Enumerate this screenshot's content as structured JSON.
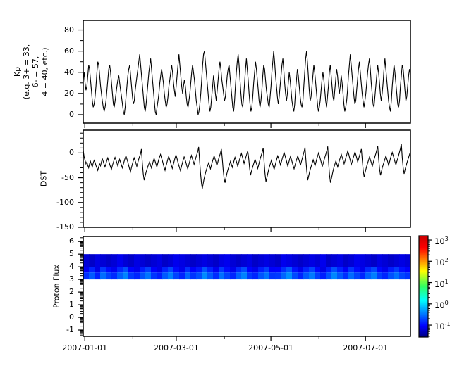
{
  "figure": {
    "bg": "#ffffff",
    "axis_color": "#000000"
  },
  "xaxis": {
    "start": "2006-12-31",
    "end": "2007-07-30",
    "major_ticks": [
      {
        "date": "2007-01-01",
        "label": "2007-01-01"
      },
      {
        "date": "2007-03-01",
        "label": "2007-03-01"
      },
      {
        "date": "2007-05-01",
        "label": "2007-05-01"
      },
      {
        "date": "2007-07-01",
        "label": "2007-07-01"
      }
    ],
    "minor_ticks": [
      "2007-02-01",
      "2007-04-01",
      "2007-06-01"
    ]
  },
  "chart_data": [
    {
      "id": "kp",
      "type": "line",
      "ylabel": "Kp\n(e.g. 3+ = 33,\n6- = 57,\n4 = 40, etc.)",
      "ylim": [
        -8,
        89
      ],
      "yticks_major": [
        0,
        20,
        40,
        60,
        80
      ],
      "yticks_minor": [
        10,
        30,
        50,
        70
      ],
      "line_color": "#000000",
      "values": [
        33,
        40,
        30,
        23,
        27,
        37,
        47,
        43,
        33,
        23,
        13,
        7,
        10,
        17,
        27,
        40,
        50,
        47,
        37,
        27,
        20,
        13,
        7,
        3,
        7,
        13,
        23,
        33,
        43,
        47,
        40,
        30,
        20,
        10,
        7,
        13,
        20,
        27,
        33,
        37,
        30,
        23,
        17,
        10,
        3,
        0,
        7,
        17,
        27,
        37,
        43,
        47,
        37,
        27,
        17,
        10,
        13,
        23,
        30,
        37,
        43,
        50,
        57,
        47,
        37,
        27,
        17,
        7,
        3,
        10,
        20,
        30,
        40,
        47,
        53,
        43,
        33,
        23,
        13,
        3,
        0,
        7,
        13,
        20,
        30,
        37,
        43,
        37,
        30,
        20,
        13,
        7,
        10,
        17,
        27,
        33,
        40,
        47,
        40,
        30,
        23,
        17,
        27,
        37,
        47,
        57,
        47,
        37,
        27,
        20,
        27,
        33,
        27,
        17,
        10,
        7,
        13,
        20,
        30,
        40,
        47,
        40,
        33,
        23,
        13,
        7,
        0,
        3,
        10,
        20,
        33,
        47,
        57,
        60,
        50,
        40,
        30,
        20,
        10,
        3,
        7,
        17,
        27,
        37,
        30,
        20,
        13,
        23,
        33,
        43,
        50,
        43,
        33,
        27,
        20,
        13,
        17,
        27,
        37,
        43,
        47,
        37,
        27,
        17,
        7,
        3,
        13,
        27,
        40,
        50,
        57,
        47,
        33,
        20,
        10,
        7,
        17,
        30,
        43,
        53,
        43,
        33,
        20,
        10,
        3,
        7,
        17,
        30,
        40,
        50,
        43,
        33,
        23,
        13,
        7,
        13,
        23,
        37,
        47,
        43,
        33,
        23,
        17,
        10,
        7,
        17,
        27,
        40,
        50,
        60,
        50,
        37,
        27,
        17,
        10,
        17,
        27,
        37,
        47,
        53,
        43,
        30,
        20,
        13,
        20,
        30,
        40,
        33,
        23,
        13,
        7,
        3,
        10,
        23,
        33,
        43,
        37,
        27,
        17,
        10,
        7,
        13,
        27,
        40,
        53,
        60,
        50,
        37,
        23,
        13,
        17,
        27,
        37,
        47,
        40,
        30,
        20,
        10,
        3,
        7,
        13,
        23,
        33,
        40,
        33,
        23,
        13,
        7,
        17,
        27,
        40,
        47,
        37,
        27,
        17,
        13,
        23,
        33,
        43,
        37,
        27,
        20,
        27,
        37,
        30,
        20,
        10,
        3,
        7,
        13,
        23,
        37,
        47,
        57,
        47,
        37,
        27,
        17,
        10,
        13,
        23,
        33,
        43,
        50,
        40,
        30,
        20,
        13,
        7,
        13,
        20,
        30,
        40,
        47,
        53,
        43,
        30,
        20,
        10,
        7,
        17,
        27,
        37,
        47,
        40,
        30,
        20,
        13,
        20,
        30,
        43,
        53,
        43,
        33,
        23,
        13,
        7,
        3,
        13,
        27,
        37,
        47,
        40,
        30,
        20,
        10,
        7,
        13,
        27,
        37,
        47,
        43,
        33,
        23,
        13,
        17,
        27,
        37,
        43,
        37
      ]
    },
    {
      "id": "dst",
      "type": "line",
      "ylabel": "DST",
      "ylim": [
        -150,
        46
      ],
      "yticks_major": [
        0,
        -50,
        -100,
        -150
      ],
      "yticks_minor": [
        40,
        30,
        20,
        10,
        -10,
        -20,
        -30,
        -40,
        -60,
        -70,
        -80,
        -90,
        -110,
        -120,
        -130,
        -140
      ],
      "line_color": "#000000",
      "values": [
        5,
        -8,
        -15,
        -22,
        -18,
        -25,
        -30,
        -22,
        -17,
        -24,
        -28,
        -20,
        -15,
        -19,
        -25,
        -30,
        -35,
        -28,
        -22,
        -26,
        -18,
        -12,
        -17,
        -23,
        -28,
        -22,
        -15,
        -10,
        -16,
        -22,
        -28,
        -33,
        -26,
        -20,
        -14,
        -9,
        -14,
        -20,
        -26,
        -19,
        -13,
        -18,
        -24,
        -30,
        -24,
        -17,
        -11,
        -6,
        -12,
        -18,
        -25,
        -32,
        -38,
        -30,
        -23,
        -16,
        -10,
        -15,
        -21,
        -27,
        -20,
        -13,
        -7,
        -2,
        8,
        -20,
        -42,
        -55,
        -48,
        -40,
        -34,
        -28,
        -23,
        -18,
        -24,
        -30,
        -24,
        -17,
        -11,
        -16,
        -22,
        -28,
        -21,
        -14,
        -8,
        -3,
        -9,
        -15,
        -22,
        -29,
        -35,
        -27,
        -20,
        -13,
        -7,
        -12,
        -18,
        -25,
        -31,
        -24,
        -17,
        -10,
        -4,
        -10,
        -17,
        -24,
        -30,
        -36,
        -28,
        -21,
        -14,
        -8,
        -13,
        -19,
        -26,
        -32,
        -25,
        -18,
        -11,
        -5,
        -11,
        -17,
        -23,
        -16,
        -9,
        -3,
        3,
        12,
        -15,
        -40,
        -60,
        -72,
        -62,
        -52,
        -44,
        -37,
        -31,
        -25,
        -20,
        -26,
        -32,
        -25,
        -18,
        -12,
        -6,
        -12,
        -18,
        -25,
        -19,
        -12,
        -6,
        0,
        8,
        -12,
        -35,
        -52,
        -60,
        -50,
        -42,
        -35,
        -29,
        -23,
        -17,
        -23,
        -29,
        -22,
        -15,
        -9,
        -14,
        -20,
        -27,
        -20,
        -13,
        -7,
        -1,
        -7,
        -14,
        -21,
        -15,
        -8,
        -2,
        4,
        -10,
        -30,
        -45,
        -38,
        -31,
        -25,
        -19,
        -13,
        -18,
        -24,
        -31,
        -24,
        -17,
        -10,
        -4,
        2,
        10,
        -18,
        -42,
        -58,
        -50,
        -42,
        -34,
        -27,
        -21,
        -15,
        -21,
        -27,
        -33,
        -26,
        -19,
        -12,
        -6,
        -11,
        -17,
        -24,
        -18,
        -11,
        -5,
        1,
        -5,
        -12,
        -19,
        -26,
        -20,
        -13,
        -7,
        -13,
        -19,
        -26,
        -32,
        -25,
        -18,
        -12,
        -6,
        -12,
        -18,
        -25,
        -18,
        -11,
        -4,
        3,
        11,
        -15,
        -38,
        -55,
        -47,
        -39,
        -32,
        -26,
        -20,
        -14,
        -20,
        -26,
        -19,
        -12,
        -6,
        0,
        -6,
        -13,
        -20,
        -27,
        -21,
        -14,
        -8,
        -2,
        5,
        13,
        -20,
        -45,
        -60,
        -52,
        -43,
        -35,
        -28,
        -22,
        -16,
        -22,
        -28,
        -21,
        -14,
        -8,
        -3,
        -9,
        -15,
        -22,
        -16,
        -9,
        -3,
        4,
        -2,
        -9,
        -16,
        -23,
        -17,
        -10,
        -4,
        2,
        -4,
        -11,
        -18,
        -12,
        -5,
        1,
        8,
        -15,
        -35,
        -48,
        -40,
        -33,
        -26,
        -20,
        -14,
        -8,
        -14,
        -20,
        -27,
        -20,
        -13,
        -7,
        -1,
        6,
        14,
        -12,
        -32,
        -45,
        -38,
        -30,
        -24,
        -18,
        -12,
        -6,
        -12,
        -18,
        -25,
        -18,
        -11,
        -5,
        1,
        -5,
        -11,
        -18,
        -24,
        -17,
        -11,
        -5,
        2,
        9,
        18,
        -10,
        -30,
        -42,
        -34,
        -27,
        -21,
        -15,
        -9,
        -3,
        3
      ]
    },
    {
      "id": "proton_flux",
      "type": "heatmap",
      "ylabel": "Proton Flux",
      "ylim": [
        -1.5,
        6.4
      ],
      "yticks_major": [
        -1,
        0,
        1,
        2,
        3,
        4,
        5,
        6
      ],
      "minor_style": "log",
      "band": {
        "y_bottom": 3,
        "y_top": 5
      },
      "rows": [
        {
          "y_bottom": 4,
          "y_top": 5,
          "bright_bottom": false,
          "values": [
            0.07,
            0.06,
            0.08,
            0.07,
            0.06,
            0.07,
            0.09,
            0.07,
            0.06,
            0.08,
            0.07,
            0.06,
            0.07,
            0.08,
            0.06,
            0.07,
            0.09,
            0.08,
            0.07,
            0.06,
            0.07,
            0.08,
            0.07,
            0.06,
            0.08,
            0.09,
            0.07,
            0.06,
            0.07,
            0.08,
            0.06,
            0.07,
            0.08,
            0.07,
            0.06,
            0.09,
            0.08,
            0.07,
            0.06,
            0.07,
            0.08,
            0.07,
            0.09,
            0.06,
            0.07,
            0.08,
            0.06,
            0.07,
            0.09,
            0.08,
            0.07,
            0.06,
            0.08,
            0.07,
            0.06,
            0.07,
            0.08,
            0.07
          ]
        },
        {
          "y_bottom": 3,
          "y_top": 4,
          "bright_bottom": true,
          "values": [
            0.18,
            0.28,
            0.15,
            0.35,
            0.22,
            0.17,
            0.3,
            0.45,
            0.2,
            0.16,
            0.26,
            0.38,
            0.19,
            0.15,
            0.28,
            0.42,
            0.22,
            0.16,
            0.32,
            0.19,
            0.25,
            0.48,
            0.28,
            0.17,
            0.36,
            0.22,
            0.16,
            0.3,
            0.44,
            0.2,
            0.16,
            0.27,
            0.38,
            0.19,
            0.2,
            0.32,
            0.5,
            0.24,
            0.16,
            0.28,
            0.4,
            0.21,
            0.15,
            0.26,
            0.46,
            0.28,
            0.18,
            0.34,
            0.22,
            0.16,
            0.3,
            0.42,
            0.21,
            0.16,
            0.26,
            0.36,
            0.23,
            0.19
          ]
        }
      ],
      "colorbar": {
        "scale": "log",
        "log_range": [
          -1.56,
          3.2
        ],
        "tick_base": "10",
        "tick_exponents": [
          3,
          2,
          1,
          0,
          -1
        ],
        "colormap": "jet",
        "colors": [
          {
            "t": 0.0,
            "c": "#00007f"
          },
          {
            "t": 0.11,
            "c": "#0000ff"
          },
          {
            "t": 0.36,
            "c": "#00ffff"
          },
          {
            "t": 0.5,
            "c": "#30ff60"
          },
          {
            "t": 0.65,
            "c": "#ffff00"
          },
          {
            "t": 0.88,
            "c": "#ff0000"
          },
          {
            "t": 1.0,
            "c": "#c80000"
          }
        ]
      }
    }
  ]
}
